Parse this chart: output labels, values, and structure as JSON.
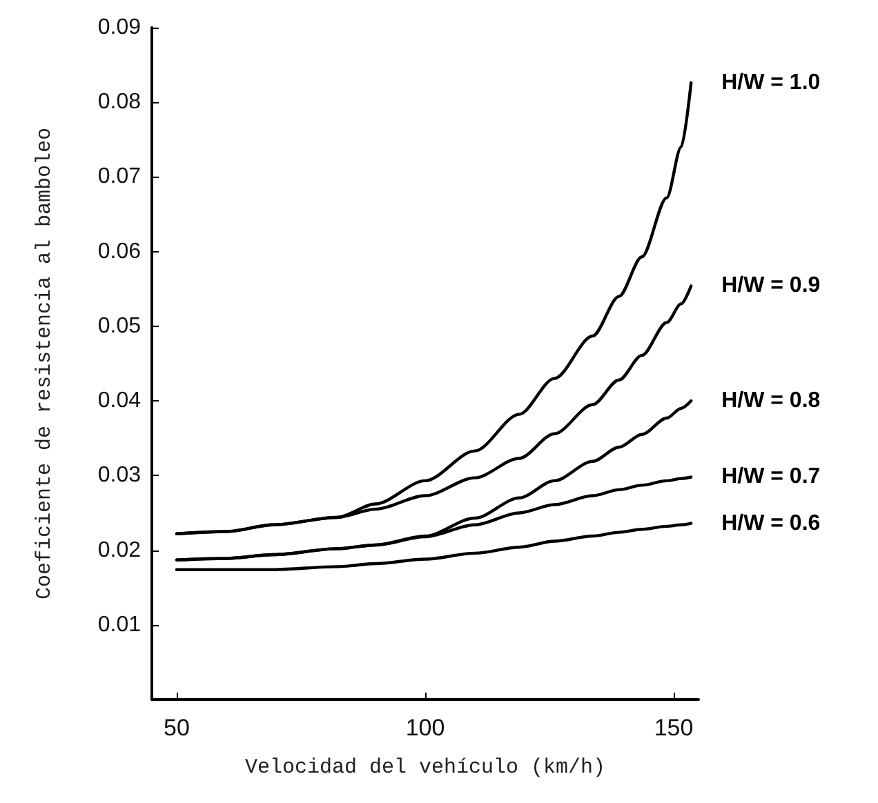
{
  "chart_data": {
    "type": "line",
    "xlabel": "Velocidad del vehículo (km/h)",
    "ylabel": "Coeficiente de resistencia al bamboleo",
    "x": [
      50,
      60,
      69.4,
      82.3,
      90,
      100,
      110,
      118.9,
      126,
      133.7,
      139,
      143.6,
      148.6,
      151.5,
      153.5
    ],
    "xlim": [
      45,
      155
    ],
    "xticks": [
      50,
      100,
      150
    ],
    "ylim": [
      0,
      0.09
    ],
    "yticks": [
      0.01,
      0.02,
      0.03,
      0.04,
      0.05,
      0.06,
      0.07,
      0.08,
      0.09
    ],
    "grid": false,
    "legend": false,
    "marker": "none",
    "line_style": "solid",
    "series": [
      {
        "name": "H/W = 1.0",
        "color": "#000000",
        "values": [
          0.0222,
          0.0225,
          0.0234,
          0.0244,
          0.0262,
          0.0293,
          0.0333,
          0.0382,
          0.043,
          0.0487,
          0.054,
          0.0593,
          0.0672,
          0.074,
          0.0826
        ]
      },
      {
        "name": "H/W = 0.9",
        "color": "#000000",
        "values": [
          0.0222,
          0.0225,
          0.0234,
          0.0244,
          0.0255,
          0.0273,
          0.0297,
          0.0323,
          0.0356,
          0.0395,
          0.0428,
          0.0461,
          0.0505,
          0.053,
          0.0554
        ]
      },
      {
        "name": "H/W = 0.8",
        "color": "#000000",
        "values": [
          0.0187,
          0.0189,
          0.0194,
          0.0202,
          0.0207,
          0.0219,
          0.0243,
          0.027,
          0.0293,
          0.0319,
          0.0338,
          0.0355,
          0.0377,
          0.039,
          0.04
        ]
      },
      {
        "name": "H/W = 0.7",
        "color": "#000000",
        "values": [
          0.0187,
          0.0189,
          0.0194,
          0.0202,
          0.0207,
          0.0218,
          0.0234,
          0.025,
          0.0261,
          0.0273,
          0.0281,
          0.0287,
          0.0293,
          0.0296,
          0.0298
        ]
      },
      {
        "name": "H/W = 0.6",
        "color": "#000000",
        "values": [
          0.0174,
          0.0174,
          0.0174,
          0.0178,
          0.0182,
          0.0188,
          0.0196,
          0.0204,
          0.0212,
          0.0219,
          0.0224,
          0.0228,
          0.0232,
          0.0234,
          0.0236
        ]
      }
    ]
  }
}
